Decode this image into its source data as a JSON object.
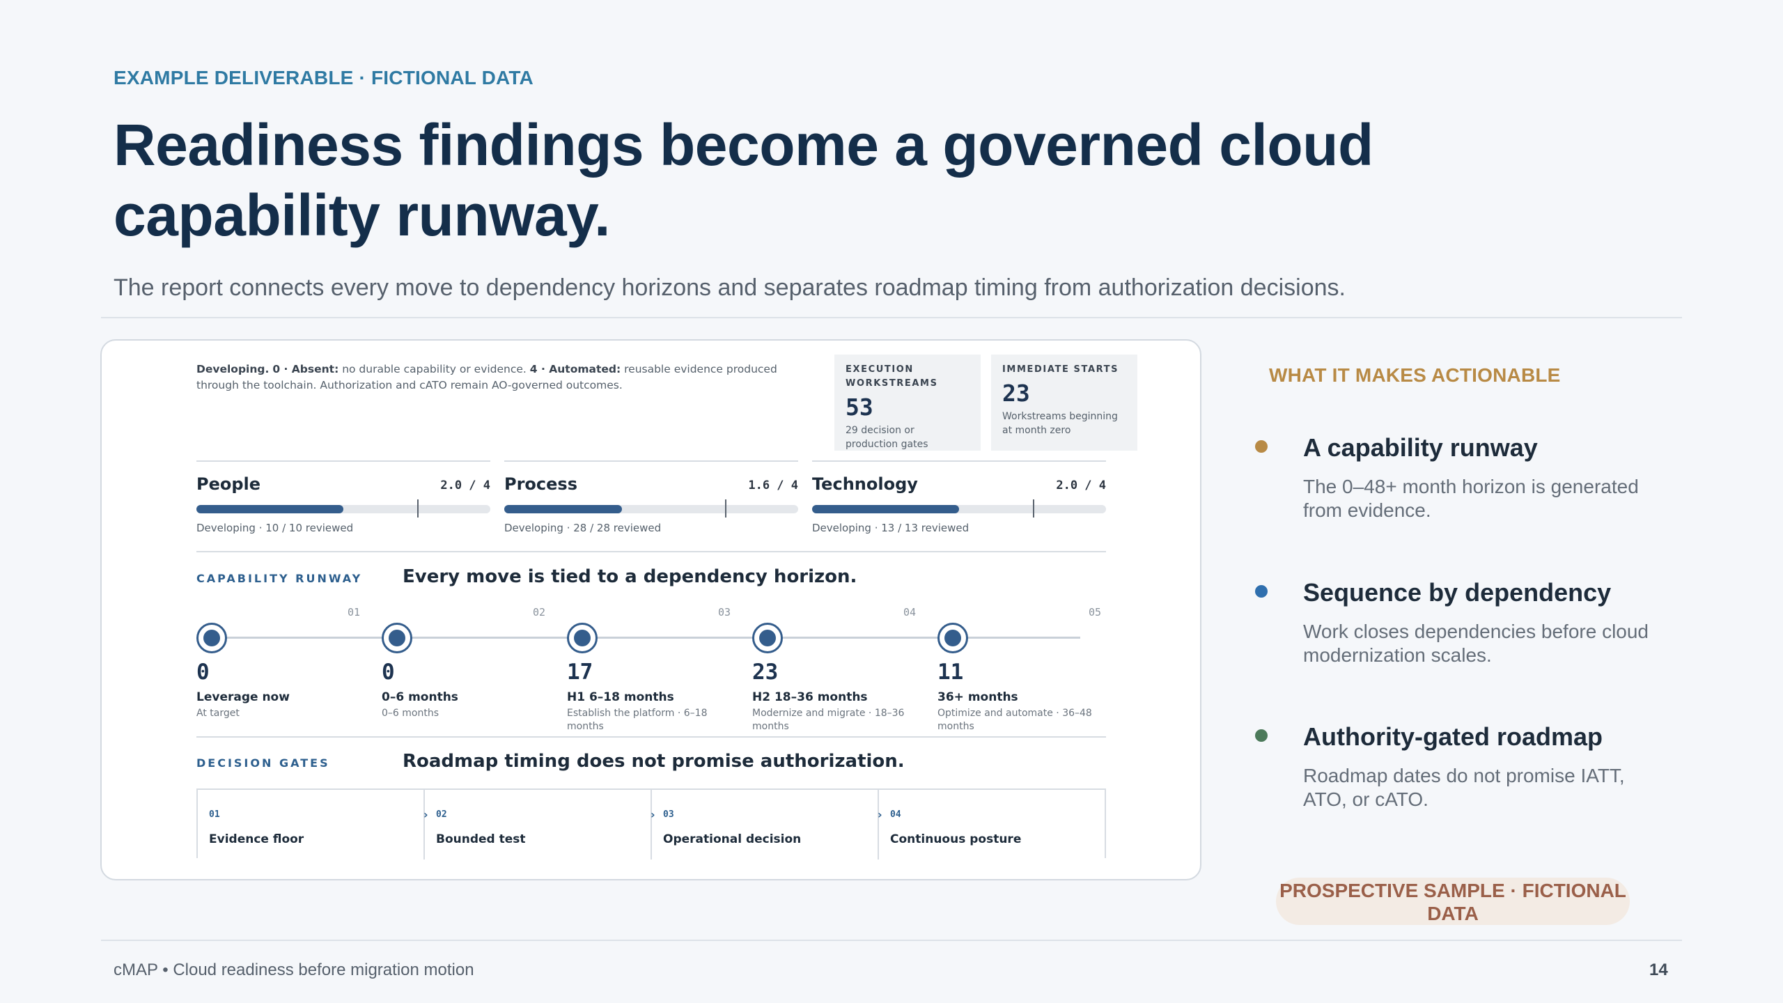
{
  "eyebrow": "EXAMPLE DELIVERABLE · FICTIONAL DATA",
  "title": "Readiness findings become a governed cloud capability runway.",
  "subtitle": "The report connects every move to dependency horizons and separates roadmap timing from authorization decisions.",
  "card": {
    "legend": {
      "s1_bold": "Developing.",
      "s2_bold": "0 · Absent:",
      "s2_text": "no durable capability or evidence.",
      "s3_bold": "4 · Automated:",
      "s3_text": "reusable evidence produced through the toolchain. Authorization and cATO remain AO-governed outcomes."
    },
    "stats": [
      {
        "label": "EXECUTION WORKSTREAMS",
        "value": "53",
        "sub": "29 decision or production gates"
      },
      {
        "label": "IMMEDIATE STARTS",
        "value": "23",
        "sub": "Workstreams beginning at month zero"
      }
    ],
    "domains": [
      {
        "name": "People",
        "score": "2.0 / 4",
        "value": 2.0,
        "max": 4,
        "target": 3.0,
        "meta": "Developing · 10 / 10 reviewed"
      },
      {
        "name": "Process",
        "score": "1.6 / 4",
        "value": 1.6,
        "max": 4,
        "target": 3.0,
        "meta": "Developing · 28 / 28 reviewed"
      },
      {
        "name": "Technology",
        "score": "2.0 / 4",
        "value": 2.0,
        "max": 4,
        "target": 3.0,
        "meta": "Developing · 13 / 13 reviewed"
      }
    ],
    "runway": {
      "label": "CAPABILITY RUNWAY",
      "title": "Every move is tied to a dependency horizon.",
      "steps": [
        "01",
        "02",
        "03",
        "04",
        "05"
      ],
      "stages": [
        {
          "count": "0",
          "heading": "Leverage now",
          "desc": "At target"
        },
        {
          "count": "0",
          "heading": "0–6 months",
          "desc": "0–6 months"
        },
        {
          "count": "17",
          "heading": "H1 6–18 months",
          "desc": "Establish the platform · 6–18 months"
        },
        {
          "count": "23",
          "heading": "H2 18–36 months",
          "desc": "Modernize and migrate · 18–36 months"
        },
        {
          "count": "11",
          "heading": "36+ months",
          "desc": "Optimize and automate · 36–48 months"
        }
      ]
    },
    "gates": {
      "label": "DECISION GATES",
      "title": "Roadmap timing does not promise authorization.",
      "items": [
        {
          "index": "01",
          "title": "Evidence floor"
        },
        {
          "index": "02",
          "title": "Bounded test"
        },
        {
          "index": "03",
          "title": "Operational decision"
        },
        {
          "index": "04",
          "title": "Continuous posture"
        }
      ]
    }
  },
  "aside": {
    "label": "WHAT IT MAKES ACTIONABLE",
    "points": [
      {
        "heading": "A capability runway",
        "desc": "The 0–48+ month horizon is generated from evidence.",
        "color": "#b88a45"
      },
      {
        "heading": "Sequence by dependency",
        "desc": "Work closes dependencies before cloud modernization scales.",
        "color": "#2f6fae"
      },
      {
        "heading": "Authority-gated roadmap",
        "desc": "Roadmap dates do not promise IATT, ATO, or cATO.",
        "color": "#4c7a5a"
      }
    ],
    "badge": "PROSPECTIVE SAMPLE · FICTIONAL DATA"
  },
  "footer": {
    "left": "cMAP • Cloud readiness before migration motion",
    "page": "14"
  }
}
